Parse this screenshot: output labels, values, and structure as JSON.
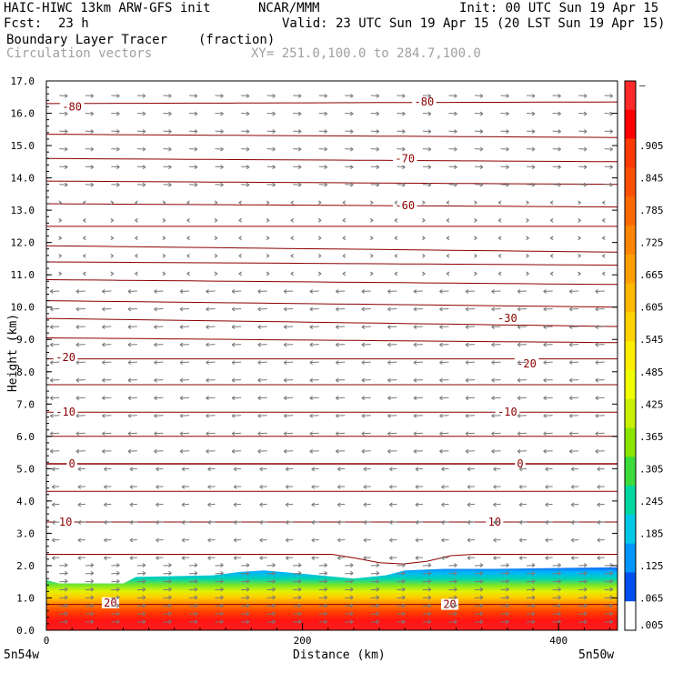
{
  "header": {
    "model": "HAIC-HIWC 13km ARW-GFS init",
    "org": "NCAR/MMM",
    "init": "Init: 00 UTC Sun 19 Apr 15",
    "fcst_label": "Fcst:",
    "fcst_value": "23 h",
    "valid": "Valid: 23 UTC Sun 19 Apr 15 (20 LST Sun 19 Apr 15)",
    "field": "Boundary Layer Tracer",
    "field_units": "(fraction)",
    "vectors": "Circulation vectors",
    "xy": "XY= 251.0,100.0 to 284.7,100.0"
  },
  "chart_data": {
    "type": "heatmap",
    "xlabel": "Distance (km)",
    "ylabel": "Height (km)",
    "xlim": [
      0,
      446
    ],
    "ylim": [
      0,
      17
    ],
    "x_ticks": [
      "0",
      "200",
      "400"
    ],
    "x_tick_values": [
      0,
      200,
      400
    ],
    "x_endpoints": [
      "5n54w",
      "5n50w"
    ],
    "y_ticks": [
      "0.0",
      "1.0",
      "2.0",
      "3.0",
      "4.0",
      "5.0",
      "6.0",
      "7.0",
      "8.0",
      "9.0",
      "10.0",
      "11.0",
      "12.0",
      "13.0",
      "14.0",
      "15.0",
      "16.0",
      "17.0"
    ],
    "colorbar": {
      "labels": [
        "–",
        ".905",
        ".845",
        ".785",
        ".725",
        ".665",
        ".605",
        ".545",
        ".485",
        ".425",
        ".365",
        ".305",
        ".245",
        ".185",
        ".125",
        ".065",
        ".005"
      ],
      "colors": [
        "#ff2a2a",
        "#ff0000",
        "#ff3a00",
        "#ff5000",
        "#ff6a00",
        "#ff8400",
        "#ff9e00",
        "#ffb800",
        "#ffd200",
        "#ffee00",
        "#f0ff00",
        "#c8f000",
        "#8ce600",
        "#3cdc3c",
        "#00d8a0",
        "#00c8e6",
        "#0096ff",
        "#0050f0",
        "#ffffff"
      ]
    },
    "tracer_top_km": [
      [
        0,
        1.55
      ],
      [
        10,
        1.45
      ],
      [
        60,
        1.45
      ],
      [
        70,
        1.65
      ],
      [
        130,
        1.7
      ],
      [
        150,
        1.8
      ],
      [
        170,
        1.85
      ],
      [
        200,
        1.75
      ],
      [
        240,
        1.6
      ],
      [
        265,
        1.7
      ],
      [
        280,
        1.85
      ],
      [
        310,
        1.9
      ],
      [
        350,
        1.9
      ],
      [
        446,
        1.95
      ]
    ],
    "temperature_contours_c": [
      -80,
      -70,
      -60,
      -30,
      -20,
      -10,
      0,
      10,
      20
    ],
    "temperature_contour_labels": [
      {
        "text": "-80",
        "x": 20,
        "y": 16.2
      },
      {
        "text": "-80",
        "x": 295,
        "y": 16.35
      },
      {
        "text": "-70",
        "x": 280,
        "y": 14.6
      },
      {
        "text": "-60",
        "x": 280,
        "y": 13.15
      },
      {
        "text": "-30",
        "x": 360,
        "y": 9.65
      },
      {
        "text": "-20",
        "x": 15,
        "y": 8.45
      },
      {
        "text": "-20",
        "x": 375,
        "y": 8.25
      },
      {
        "text": "-10",
        "x": 15,
        "y": 6.75
      },
      {
        "text": "-10",
        "x": 360,
        "y": 6.75
      },
      {
        "text": "0",
        "x": 20,
        "y": 5.15
      },
      {
        "text": "0",
        "x": 370,
        "y": 5.15
      },
      {
        "text": "10",
        "x": 15,
        "y": 3.35
      },
      {
        "text": "10",
        "x": 350,
        "y": 3.35
      },
      {
        "text": "20",
        "x": 50,
        "y": 0.85
      },
      {
        "text": "20",
        "x": 315,
        "y": 0.8
      }
    ],
    "contour_levels_km": [
      0.8,
      2.35,
      3.35,
      4.3,
      5.15,
      6.0,
      6.75,
      7.6,
      8.4,
      9.05,
      9.65,
      10.2,
      10.85,
      11.4,
      11.9,
      12.5,
      13.2,
      13.9,
      14.6,
      15.35,
      16.3
    ],
    "contour_slopes_km": [
      0,
      0,
      0,
      0,
      0,
      0,
      0,
      0,
      0,
      -0.15,
      -0.25,
      -0.2,
      -0.15,
      -0.1,
      -0.2,
      0,
      -0.1,
      -0.1,
      -0.1,
      -0.1,
      0.05
    ],
    "wind_vector_note": "westward above ~5.5 km, eastward aloft and in the boundary layer"
  },
  "colors": {
    "contour": "#8b0000",
    "vector": "#7a7a7a",
    "frame": "#000000"
  }
}
